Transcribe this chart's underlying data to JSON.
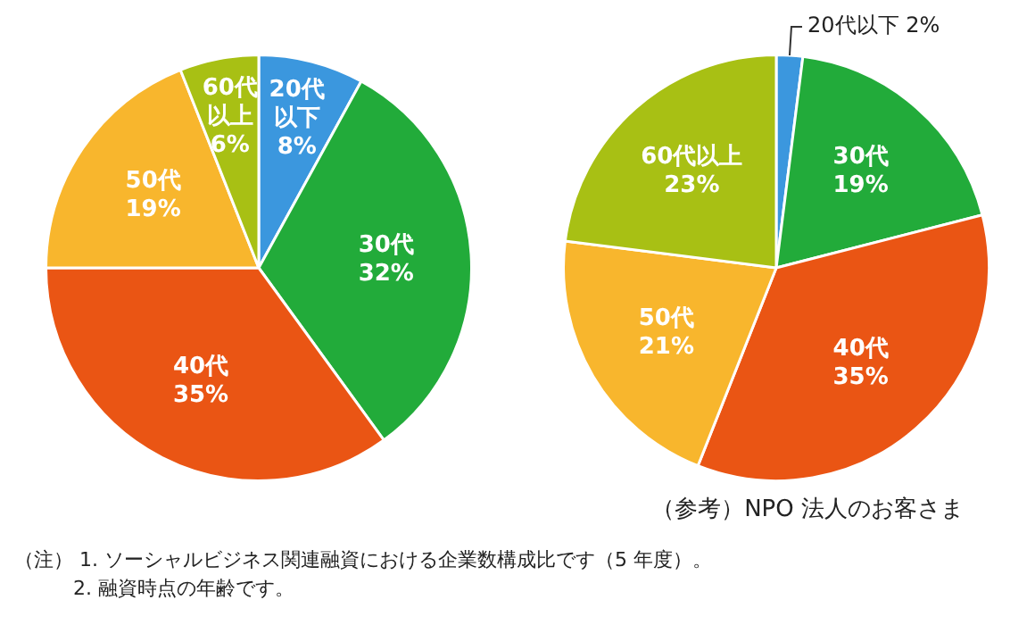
{
  "chart_data": [
    {
      "type": "pie",
      "categories": [
        "20代以下",
        "30代",
        "40代",
        "50代",
        "60代以上"
      ],
      "values": [
        8,
        32,
        35,
        19,
        6
      ],
      "value_labels": [
        "8%",
        "32%",
        "35%",
        "19%",
        "6%"
      ],
      "colors": [
        "#3b97de",
        "#22ab3a",
        "#ea5514",
        "#f8b62d",
        "#a8c014"
      ]
    },
    {
      "type": "pie",
      "title": "（参考）NPO 法人のお客さま",
      "categories": [
        "20代以下",
        "30代",
        "40代",
        "50代",
        "60代以上"
      ],
      "values": [
        2,
        19,
        35,
        21,
        23
      ],
      "value_labels": [
        "2%",
        "19%",
        "35%",
        "21%",
        "23%"
      ],
      "colors": [
        "#3b97de",
        "#22ab3a",
        "#ea5514",
        "#f8b62d",
        "#a8c014"
      ],
      "annotations": [
        "（注）  1.  ソーシャルビジネス関連融資における企業数構成比です（5 年度）。",
        "2.  融資時点の年齢です。"
      ]
    }
  ]
}
